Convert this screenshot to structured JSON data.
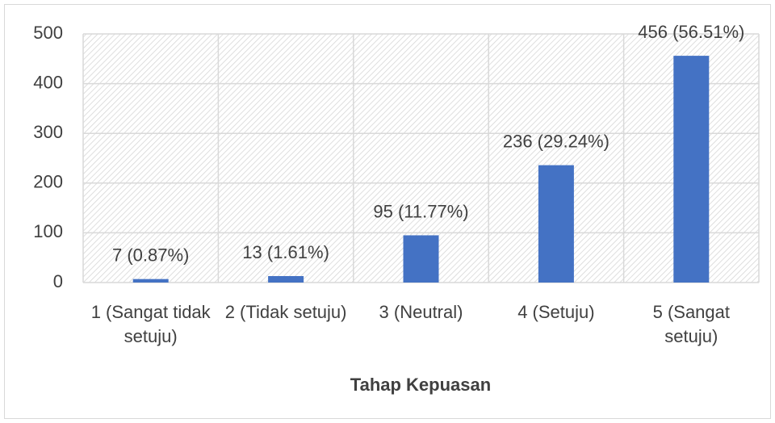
{
  "chart_data": {
    "type": "bar",
    "x_label": "Tahap Kepuasan",
    "categories": [
      "1 (Sangat tidak setuju)",
      "2 (Tidak setuju)",
      "3 (Neutral)",
      "4 (Setuju)",
      "5 (Sangat setuju)"
    ],
    "values": [
      7,
      13,
      95,
      236,
      456
    ],
    "value_labels": [
      "7 (0.87%)",
      "13 (1.61%)",
      "95 (11.77%)",
      "236 (29.24%)",
      "456 (56.51%)"
    ],
    "color": "#4472c4",
    "ylim": [
      0,
      500
    ],
    "yticks": [
      0,
      100,
      200,
      300,
      400,
      500
    ],
    "grid": true
  }
}
